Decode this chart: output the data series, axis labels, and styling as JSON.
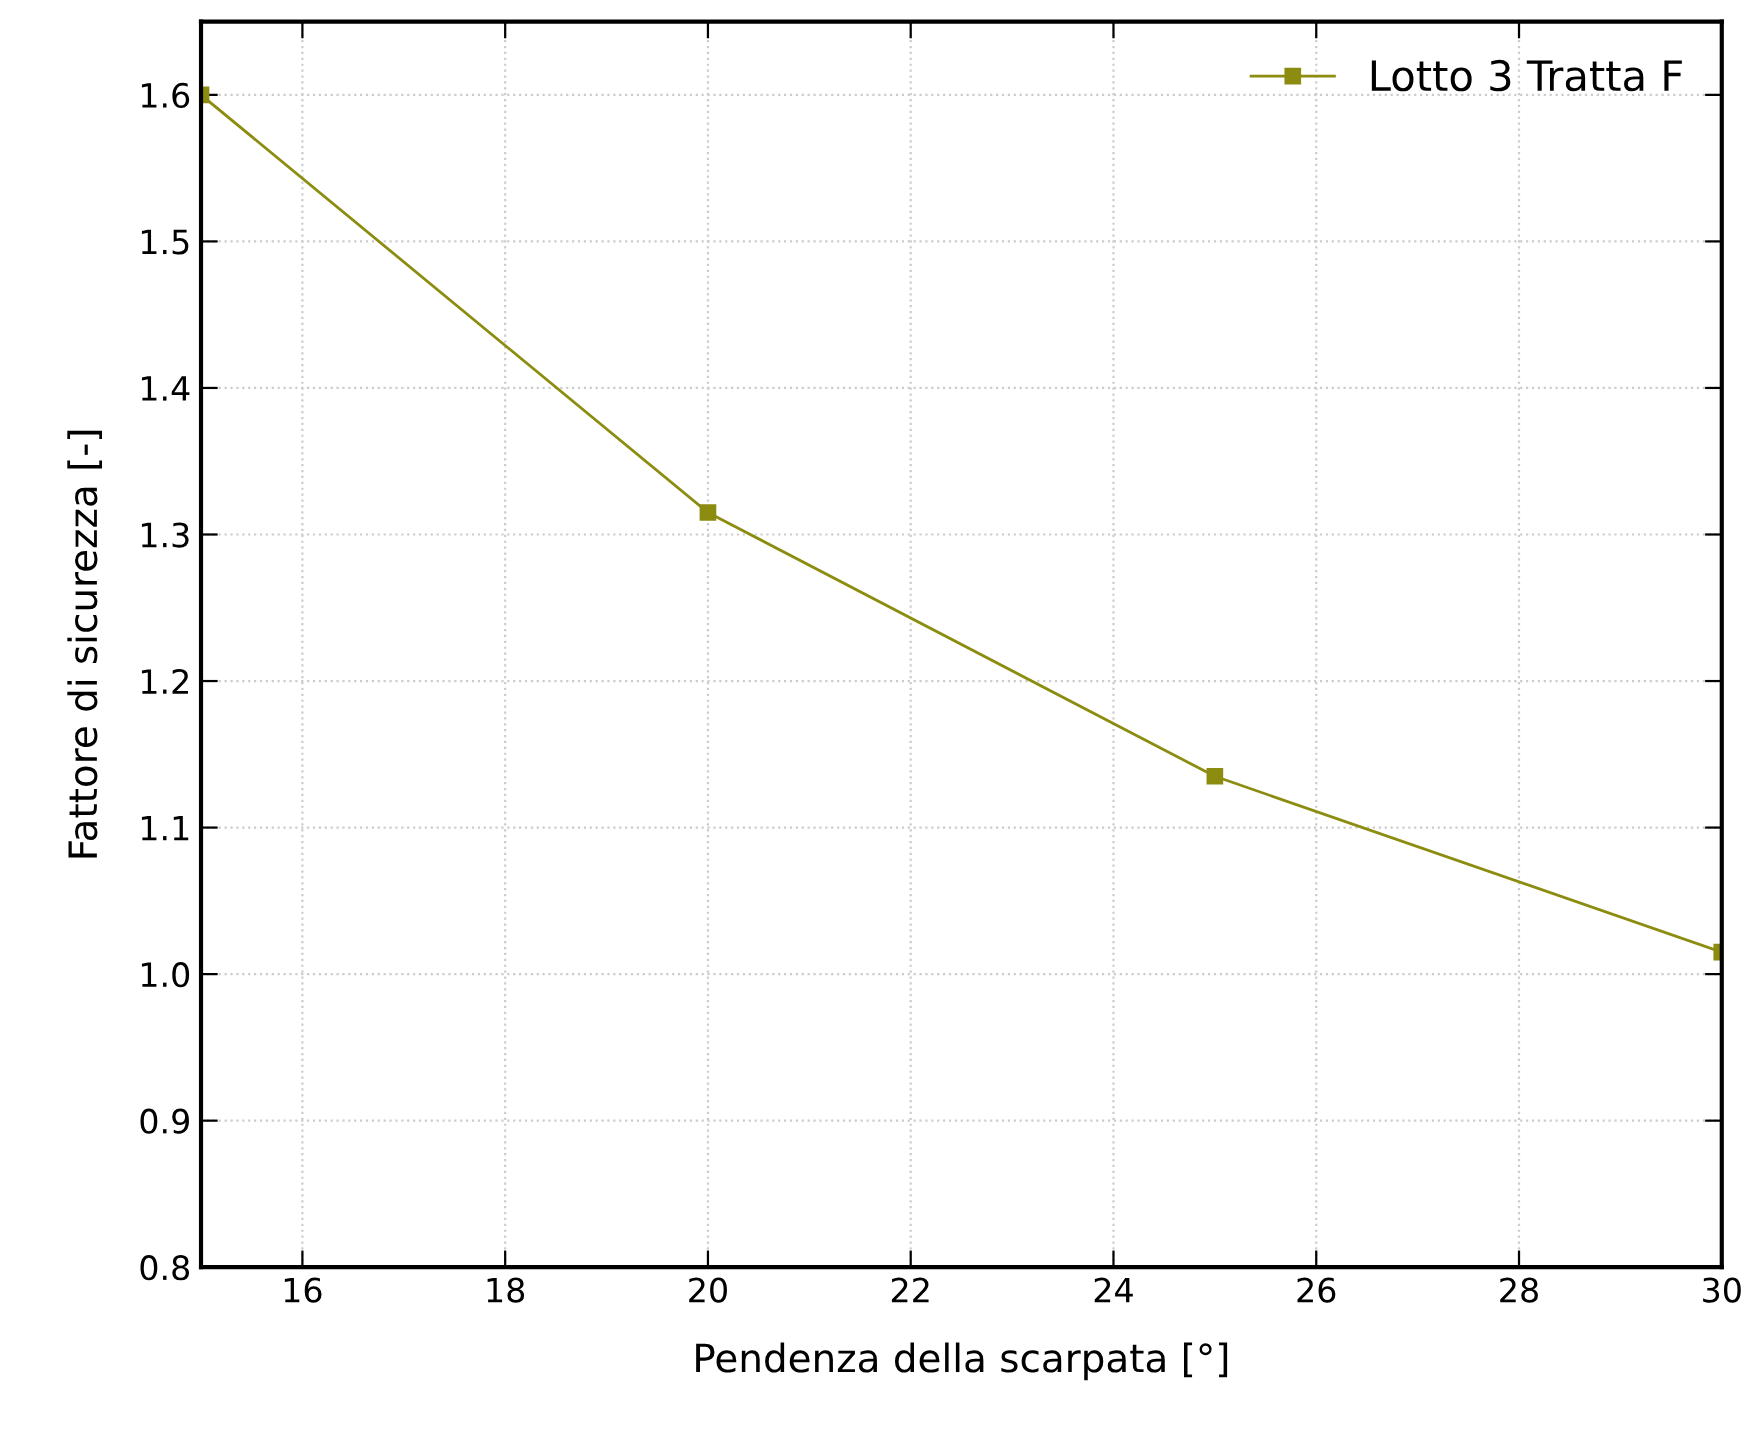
{
  "chart_data": {
    "type": "line",
    "xlabel": "Pendenza della scarpata [°]",
    "ylabel": "Fattore di sicurezza [-]",
    "x": [
      15,
      20,
      25,
      30
    ],
    "series": [
      {
        "name": "Lotto 3 Tratta F",
        "color": "#8c8c10",
        "values": [
          1.6,
          1.315,
          1.135,
          1.015
        ]
      }
    ],
    "xlim": [
      15,
      30
    ],
    "xticks": [
      16,
      18,
      20,
      22,
      24,
      26,
      28,
      30
    ],
    "ylim": [
      0.8,
      1.65
    ],
    "yticks": [
      {
        "value": 0.8,
        "label": "0.8"
      },
      {
        "value": 0.9,
        "label": "0.9"
      },
      {
        "value": 1.0,
        "label": "1.0"
      },
      {
        "value": 1.1,
        "label": "1.1"
      },
      {
        "value": 1.2,
        "label": "1.2"
      },
      {
        "value": 1.3,
        "label": "1.3"
      },
      {
        "value": 1.4,
        "label": "1.4"
      },
      {
        "value": 1.5,
        "label": "1.5"
      },
      {
        "value": 1.6,
        "label": "1.6"
      }
    ],
    "grid": true,
    "legend": "top right",
    "marker": "square",
    "line_style": "solid"
  }
}
